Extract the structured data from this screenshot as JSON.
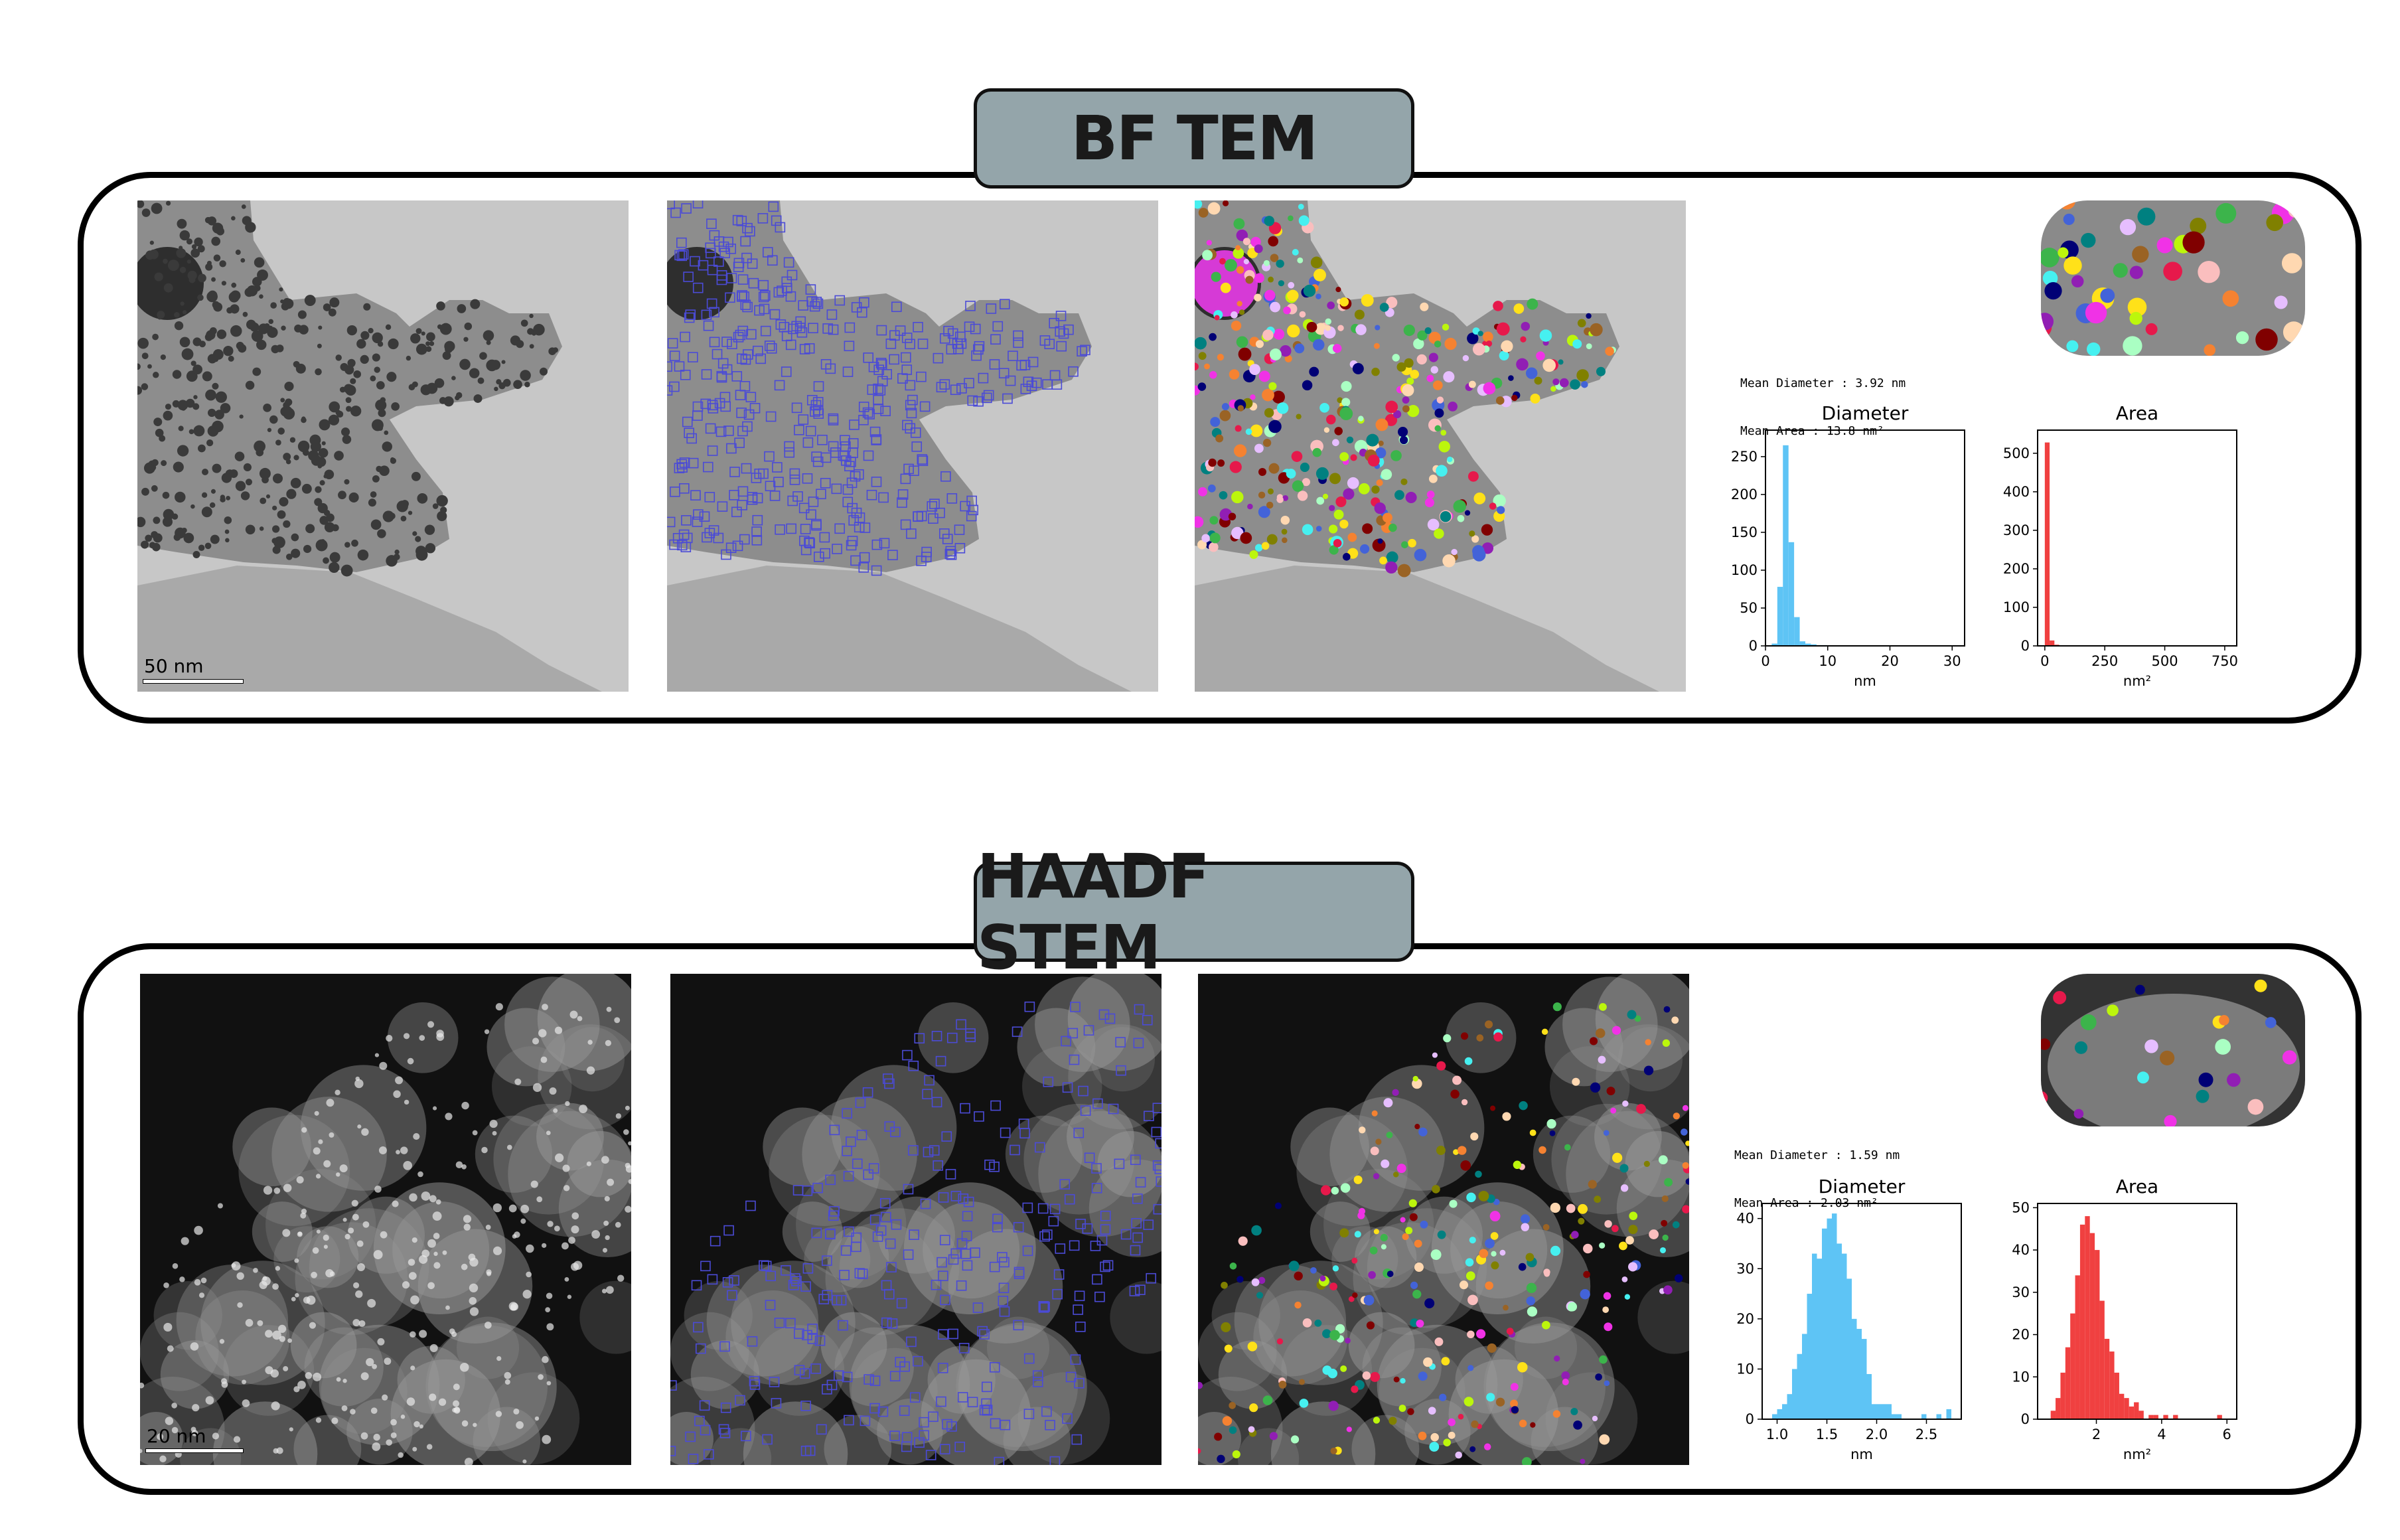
{
  "sections": [
    {
      "title": "BF TEM",
      "scale_bar_label": "50 nm",
      "stats": {
        "mean_diameter": "Mean Diameter : 3.92 nm",
        "mean_area": "Mean Area : 13.8 nm²"
      }
    },
    {
      "title": "HAADF STEM",
      "scale_bar_label": "20 nm",
      "stats": {
        "mean_diameter": "Mean Diameter : 1.59 nm",
        "mean_area": "Mean Area : 2.03 nm²"
      }
    }
  ],
  "colors": {
    "diameter_bars": "#5ec4f5",
    "area_bars": "#f04040",
    "tab_fill": "#94a5aa",
    "box_color": "#4b4bd6"
  },
  "chart_data": [
    {
      "type": "bar",
      "title": "Diameter",
      "xlabel": "nm",
      "ylabel": "",
      "xlim": [
        0,
        32
      ],
      "ylim": [
        0,
        285
      ],
      "xticks": [
        0,
        10,
        20,
        30
      ],
      "yticks": [
        0,
        50,
        100,
        150,
        200,
        250
      ],
      "bin_edges": [
        1.0,
        1.9,
        2.8,
        3.7,
        4.6,
        5.5,
        6.4,
        7.3,
        8.2,
        9.1,
        10.0
      ],
      "values": [
        3,
        78,
        265,
        137,
        38,
        6,
        3,
        2,
        1,
        1
      ],
      "color": "#5ec4f5"
    },
    {
      "type": "bar",
      "title": "Area",
      "xlabel": "nm²",
      "ylabel": "",
      "xlim": [
        -30,
        800
      ],
      "ylim": [
        0,
        560
      ],
      "xticks": [
        0,
        250,
        500,
        750
      ],
      "yticks": [
        0,
        100,
        200,
        300,
        400,
        500
      ],
      "bin_edges": [
        0,
        20,
        40,
        60
      ],
      "values": [
        528,
        14,
        3
      ],
      "color": "#f04040"
    },
    {
      "type": "bar",
      "title": "Diameter",
      "xlabel": "nm",
      "ylabel": "",
      "xlim": [
        0.85,
        2.85
      ],
      "ylim": [
        0,
        43
      ],
      "xticks": [
        1.0,
        1.5,
        2.0,
        2.5
      ],
      "yticks": [
        0,
        10,
        20,
        30,
        40
      ],
      "bin_edges": [
        0.95,
        1.0,
        1.05,
        1.1,
        1.15,
        1.2,
        1.25,
        1.3,
        1.35,
        1.4,
        1.45,
        1.5,
        1.55,
        1.6,
        1.65,
        1.7,
        1.75,
        1.8,
        1.85,
        1.9,
        1.95,
        2.0,
        2.05,
        2.1,
        2.15,
        2.2,
        2.25,
        2.3,
        2.35,
        2.4,
        2.45,
        2.5,
        2.55,
        2.6,
        2.65,
        2.7,
        2.75
      ],
      "values": [
        1,
        2,
        3,
        5,
        10,
        13,
        17,
        25,
        33,
        32,
        38,
        40,
        41,
        35,
        33,
        28,
        20,
        18,
        16,
        9,
        3,
        3,
        3,
        3,
        1,
        1,
        0,
        0,
        0,
        0,
        1,
        0,
        0,
        1,
        0,
        2
      ],
      "color": "#5ec4f5"
    },
    {
      "type": "bar",
      "title": "Area",
      "xlabel": "nm²",
      "ylabel": "",
      "xlim": [
        0.2,
        6.3
      ],
      "ylim": [
        0,
        51
      ],
      "xticks": [
        2,
        4,
        6
      ],
      "yticks": [
        0,
        10,
        20,
        30,
        40,
        50
      ],
      "bin_edges": [
        0.6,
        0.75,
        0.9,
        1.05,
        1.2,
        1.35,
        1.5,
        1.65,
        1.8,
        1.95,
        2.1,
        2.25,
        2.4,
        2.55,
        2.7,
        2.85,
        3.0,
        3.15,
        3.3,
        3.45,
        3.6,
        3.75,
        3.9,
        4.05,
        4.2,
        4.35,
        4.5,
        4.65,
        4.8,
        4.95,
        5.1,
        5.25,
        5.4,
        5.55,
        5.7,
        5.85,
        6.0
      ],
      "values": [
        2,
        5,
        11,
        17,
        25,
        34,
        46,
        48,
        44,
        40,
        28,
        19,
        16,
        11,
        6,
        5,
        3,
        4,
        2,
        0,
        1,
        1,
        0,
        1,
        0,
        1,
        0,
        0,
        0,
        0,
        0,
        0,
        0,
        0,
        1,
        0
      ],
      "color": "#f04040"
    }
  ]
}
